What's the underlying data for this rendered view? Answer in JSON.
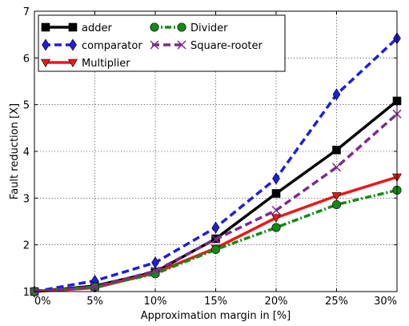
{
  "chart_data": {
    "type": "line",
    "title": "",
    "xlabel": "Approximation margin in [%]",
    "ylabel": "Fault reduction [X]",
    "x": [
      0,
      5,
      10,
      15,
      20,
      25,
      30
    ],
    "xlim": [
      0,
      30
    ],
    "ylim": [
      1,
      7
    ],
    "x_ticks": [
      0,
      5,
      10,
      15,
      20,
      25,
      30
    ],
    "x_tick_labels": [
      "0%",
      "5%",
      "10%",
      "15%",
      "20%",
      "25%",
      "30%"
    ],
    "y_ticks": [
      1,
      2,
      3,
      4,
      5,
      6,
      7
    ],
    "y_tick_labels": [
      "1",
      "2",
      "3",
      "4",
      "5",
      "6",
      "7"
    ],
    "grid": true,
    "legend_position": "top-left",
    "series": [
      {
        "name": "adder",
        "values": [
          1.0,
          1.12,
          1.42,
          2.13,
          3.1,
          4.03,
          5.08
        ],
        "color": "#000000",
        "line_style": "solid",
        "marker": "square"
      },
      {
        "name": "comparator",
        "values": [
          1.0,
          1.23,
          1.62,
          2.37,
          3.42,
          5.22,
          6.42
        ],
        "color": "#1f1fd6",
        "line_style": "dashed",
        "marker": "diamond"
      },
      {
        "name": "Multiplier",
        "values": [
          1.0,
          1.08,
          1.4,
          1.93,
          2.58,
          3.05,
          3.45
        ],
        "color": "#e8191a",
        "line_style": "solid",
        "marker": "triangle-down"
      },
      {
        "name": "Divider",
        "values": [
          1.0,
          1.1,
          1.38,
          1.9,
          2.37,
          2.86,
          3.17
        ],
        "color": "#138a13",
        "line_style": "dash-dot",
        "marker": "circle"
      },
      {
        "name": "Square-rooter",
        "values": [
          1.0,
          1.1,
          1.44,
          2.12,
          2.74,
          3.66,
          4.8
        ],
        "color": "#7b2c8c",
        "line_style": "dashed",
        "marker": "x"
      }
    ]
  }
}
